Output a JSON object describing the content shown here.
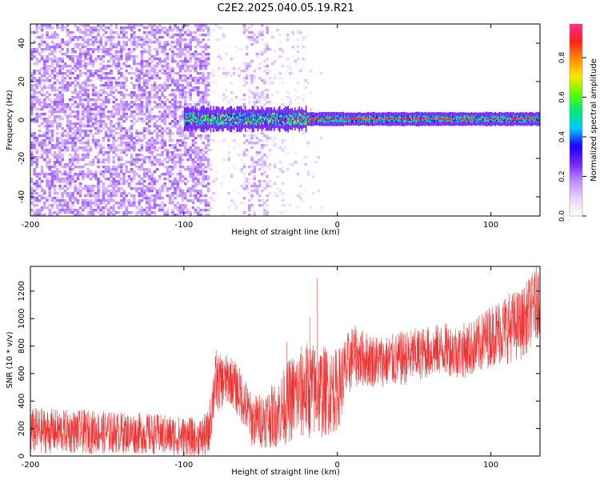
{
  "figure_title": "C2E2.2025.040.05.19.R21",
  "colors": {
    "snr_line": "#ee3333",
    "axis": "#000000",
    "colormap": [
      "#ffffff",
      "#e8d4ff",
      "#bf8cff",
      "#7a22ff",
      "#1a00ff",
      "#00c8ff",
      "#00e87a",
      "#5cff00",
      "#ffe600",
      "#ff8c00",
      "#ff2020",
      "#ff2f8a"
    ]
  },
  "chart_data": [
    {
      "type": "heatmap",
      "title": "",
      "xlabel": "Height of straight line (km)",
      "ylabel": "Frequency (Hz)",
      "xlim": [
        -200,
        132
      ],
      "ylim": [
        -50,
        50
      ],
      "x_ticks": [
        "-200",
        "-100",
        "0",
        "100"
      ],
      "y_ticks": [
        "-40",
        "-20",
        "0",
        "20",
        "40"
      ],
      "colorbar": {
        "label": "Normalized spectral amplitude",
        "range": [
          0,
          0.97
        ],
        "ticks": [
          "0.0",
          "0.2",
          "0.4",
          "0.6",
          "0.8"
        ]
      },
      "regions": [
        {
          "x_range": [
            -200,
            -84
          ],
          "freq_range": [
            -50,
            50
          ],
          "amplitude": "0.1-0.25",
          "description_level": "noise"
        },
        {
          "x_range": [
            -84,
            -20
          ],
          "freq_range": [
            -50,
            50
          ],
          "amplitude": "0.02-0.1",
          "description_level": "sparse noise"
        },
        {
          "x_range": [
            -100,
            -20
          ],
          "freq_range": [
            -5,
            5
          ],
          "amplitude": "0.3-0.7",
          "description_level": "band"
        },
        {
          "x_range": [
            -20,
            132
          ],
          "freq_range": [
            -3,
            4
          ],
          "amplitude": "0.2-0.9",
          "description_level": "band"
        }
      ],
      "band_center_hz": 0.5
    },
    {
      "type": "line",
      "title": "",
      "xlabel": "Height of straight line (km)",
      "ylabel": "SNR (10 * v/v)",
      "xlim": [
        -200,
        132
      ],
      "ylim": [
        0,
        1380
      ],
      "x_ticks": [
        "-200",
        "-100",
        "0",
        "100"
      ],
      "y_ticks": [
        "0",
        "200",
        "400",
        "600",
        "800",
        "1000",
        "1200"
      ],
      "envelope": {
        "x": [
          -200,
          -180,
          -160,
          -140,
          -120,
          -100,
          -90,
          -84,
          -80,
          -70,
          -62,
          -56,
          -50,
          -40,
          -30,
          -20,
          -10,
          0,
          10,
          20,
          30,
          40,
          50,
          60,
          70,
          80,
          90,
          100,
          110,
          120,
          132
        ],
        "mean": [
          185,
          180,
          175,
          170,
          160,
          140,
          130,
          160,
          520,
          560,
          430,
          260,
          260,
          300,
          420,
          480,
          470,
          480,
          730,
          700,
          690,
          700,
          730,
          760,
          780,
          760,
          790,
          880,
          930,
          960,
          1150
        ],
        "spread": [
          170,
          160,
          160,
          150,
          150,
          150,
          140,
          180,
          220,
          180,
          200,
          190,
          200,
          240,
          320,
          360,
          340,
          300,
          230,
          200,
          190,
          200,
          200,
          190,
          190,
          200,
          210,
          230,
          260,
          260,
          270
        ]
      },
      "spikes": [
        {
          "x": -13,
          "y": 1295
        },
        {
          "x": -18,
          "y": 1010
        },
        {
          "x": -33,
          "y": 830
        },
        {
          "x": -79,
          "y": 770
        },
        {
          "x": 109,
          "y": 1080
        },
        {
          "x": 128,
          "y": 1290
        }
      ]
    }
  ]
}
